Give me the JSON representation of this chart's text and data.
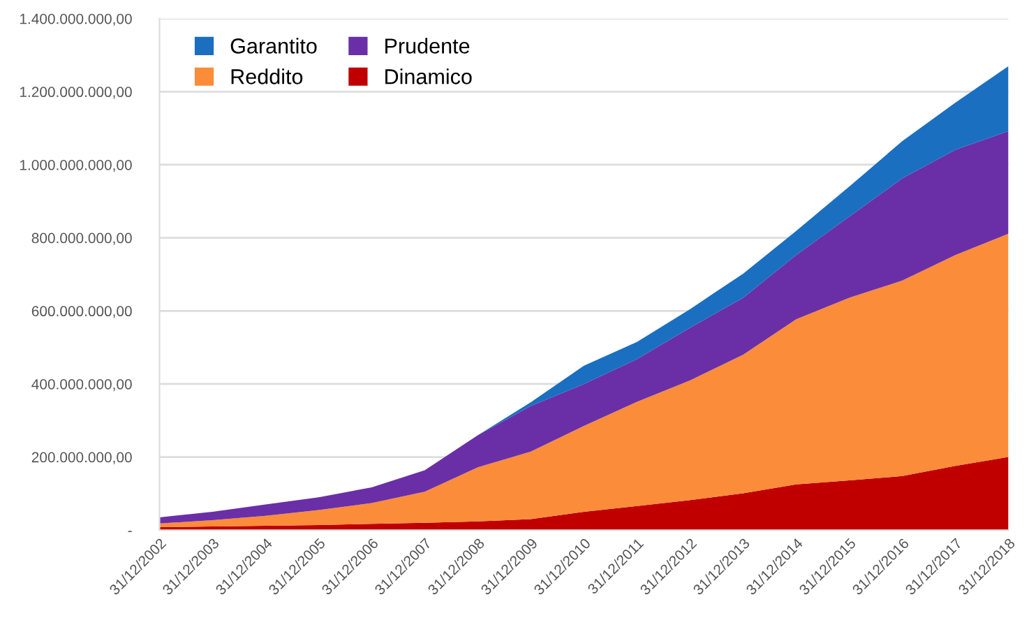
{
  "chart_data": {
    "type": "area",
    "stacked": true,
    "x": [
      "2002-12-31",
      "2003-12-31",
      "2004-12-31",
      "2005-12-31",
      "2006-12-31",
      "2007-12-31",
      "2008-12-31",
      "2009-12-31",
      "2010-12-31",
      "2011-12-31",
      "2012-12-31",
      "2013-12-31",
      "2014-12-31",
      "2015-12-31",
      "2016-12-31",
      "2017-12-31",
      "2018-12-31"
    ],
    "series": [
      {
        "name": "Dinamico",
        "color": "#c00000",
        "values": [
          8000000,
          10000000,
          12000000,
          14000000,
          17000000,
          20000000,
          24000000,
          30000000,
          50000000,
          66000000,
          82000000,
          101000000,
          125000000,
          136000000,
          148000000,
          176000000,
          200000000
        ]
      },
      {
        "name": "Reddito",
        "color": "#fb8c3a",
        "values": [
          10000000,
          17000000,
          27000000,
          41000000,
          57000000,
          85000000,
          148000000,
          185000000,
          235000000,
          285000000,
          328000000,
          379000000,
          452000000,
          500000000,
          535000000,
          577000000,
          611000000
        ]
      },
      {
        "name": "Prudente",
        "color": "#6a2fa6",
        "values": [
          17000000,
          23000000,
          31000000,
          35000000,
          43000000,
          59000000,
          88000000,
          125000000,
          115000000,
          117000000,
          144000000,
          156000000,
          176000000,
          222000000,
          280000000,
          288000000,
          281000000
        ]
      },
      {
        "name": "Garantito",
        "color": "#1a6fc0",
        "values": [
          0,
          0,
          0,
          0,
          0,
          0,
          0,
          10000000,
          50000000,
          47000000,
          51000000,
          66000000,
          66000000,
          82000000,
          102000000,
          129000000,
          178000000
        ]
      }
    ],
    "ylim": [
      0,
      1400000000
    ],
    "yticks": [
      {
        "value": 0,
        "label": "-"
      },
      {
        "value": 200000000,
        "label": "200.000.000,00"
      },
      {
        "value": 400000000,
        "label": "400.000.000,00"
      },
      {
        "value": 600000000,
        "label": "600.000.000,00"
      },
      {
        "value": 800000000,
        "label": "800.000.000,00"
      },
      {
        "value": 1000000000,
        "label": "1.000.000.000,00"
      },
      {
        "value": 1200000000,
        "label": "1.200.000.000,00"
      },
      {
        "value": 1400000000,
        "label": "1.400.000.000,00"
      }
    ],
    "xlim": [
      "2002-12-31",
      "2018-12-31"
    ],
    "xticks": [
      {
        "value": "2002-12-31",
        "label": "31/12/2002"
      },
      {
        "value": "2003-12-31",
        "label": "31/12/2003"
      },
      {
        "value": "2004-12-31",
        "label": "31/12/2004"
      },
      {
        "value": "2005-12-31",
        "label": "31/12/2005"
      },
      {
        "value": "2006-12-31",
        "label": "31/12/2006"
      },
      {
        "value": "2007-12-31",
        "label": "31/12/2007"
      },
      {
        "value": "2008-12-31",
        "label": "31/12/2008"
      },
      {
        "value": "2009-12-31",
        "label": "31/12/2009"
      },
      {
        "value": "2010-12-31",
        "label": "31/12/2010"
      },
      {
        "value": "2011-12-31",
        "label": "31/12/2011"
      },
      {
        "value": "2012-12-31",
        "label": "31/12/2012"
      },
      {
        "value": "2013-12-31",
        "label": "31/12/2013"
      },
      {
        "value": "2014-12-31",
        "label": "31/12/2014"
      },
      {
        "value": "2015-12-31",
        "label": "31/12/2015"
      },
      {
        "value": "2016-12-31",
        "label": "31/12/2016"
      },
      {
        "value": "2017-12-31",
        "label": "31/12/2017"
      },
      {
        "value": "2018-12-31",
        "label": "31/12/2018"
      }
    ],
    "grid": "y",
    "legend": "top left"
  }
}
